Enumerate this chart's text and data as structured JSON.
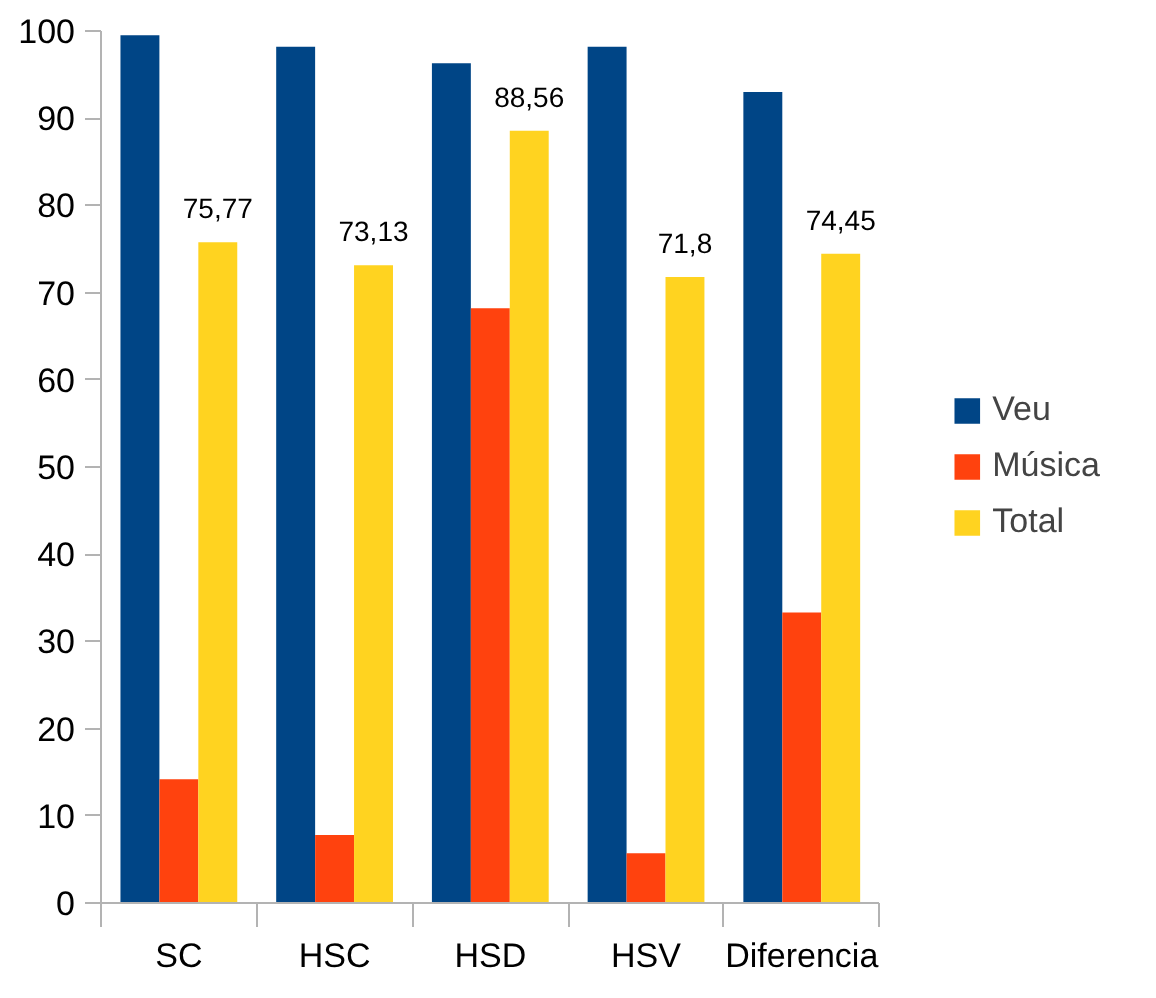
{
  "chart_data": {
    "type": "bar",
    "categories": [
      "SC",
      "HSC",
      "HSD",
      "HSV",
      "Diferencia"
    ],
    "series": [
      {
        "name": "Veu",
        "color": "#004586",
        "values": [
          99.5,
          98.2,
          96.3,
          98.2,
          93
        ]
      },
      {
        "name": "Música",
        "color": "#ff420e",
        "values": [
          14.2,
          7.8,
          68.2,
          5.7,
          33.3
        ]
      },
      {
        "name": "Total",
        "color": "#ffd320",
        "values": [
          75.77,
          73.13,
          88.56,
          71.8,
          74.45
        ],
        "value_labels": [
          "75,77",
          "73,13",
          "88,56",
          "71,8",
          "74,45"
        ]
      }
    ],
    "ylim": [
      0,
      100
    ],
    "yticks": [
      0,
      10,
      20,
      30,
      40,
      50,
      60,
      70,
      80,
      90,
      100
    ],
    "grid": false,
    "legend": "right"
  }
}
